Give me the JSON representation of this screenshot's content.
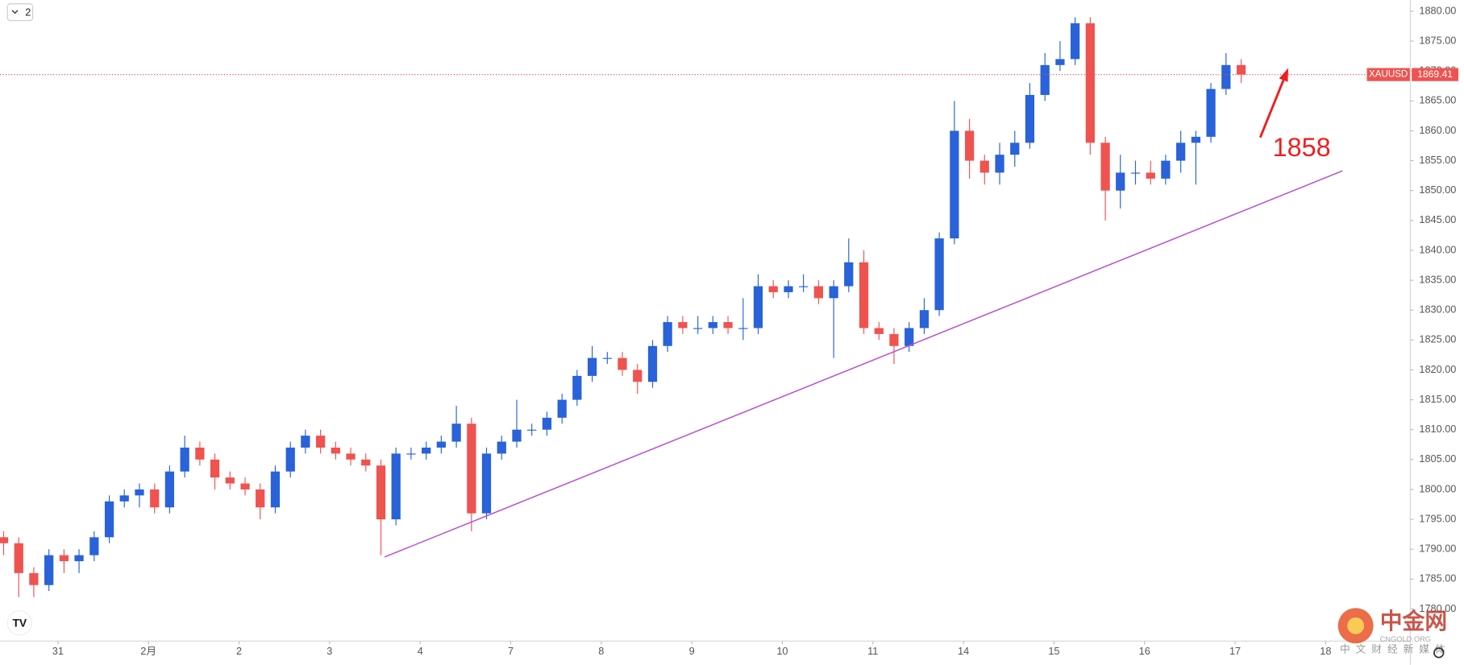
{
  "chart_data": {
    "type": "candlestick",
    "xlim": [
      -0.64,
      14.93
    ],
    "ylim": [
      1774.7,
      1881.87
    ],
    "xticks": [
      {
        "value": 0,
        "label": "31"
      },
      {
        "value": 1,
        "label": "2月"
      },
      {
        "value": 2,
        "label": "2"
      },
      {
        "value": 3,
        "label": "3"
      },
      {
        "value": 4,
        "label": "4"
      },
      {
        "value": 5,
        "label": "7"
      },
      {
        "value": 6,
        "label": "8"
      },
      {
        "value": 7,
        "label": "9"
      },
      {
        "value": 8,
        "label": "10"
      },
      {
        "value": 9,
        "label": "11"
      },
      {
        "value": 10,
        "label": "14"
      },
      {
        "value": 11,
        "label": "15"
      },
      {
        "value": 12,
        "label": "16"
      },
      {
        "value": 13,
        "label": "17"
      },
      {
        "value": 14,
        "label": "18"
      }
    ],
    "yticks": [
      {
        "value": 1880,
        "label": "1880.00"
      },
      {
        "value": 1875,
        "label": "1875.00"
      },
      {
        "value": 1870,
        "label": "1870.00"
      },
      {
        "value": 1865,
        "label": "1865.00"
      },
      {
        "value": 1860,
        "label": "1860.00"
      },
      {
        "value": 1855,
        "label": "1855.00"
      },
      {
        "value": 1850,
        "label": "1850.00"
      },
      {
        "value": 1845,
        "label": "1845.00"
      },
      {
        "value": 1840,
        "label": "1840.00"
      },
      {
        "value": 1835,
        "label": "1835.00"
      },
      {
        "value": 1830,
        "label": "1830.00"
      },
      {
        "value": 1825,
        "label": "1825.00"
      },
      {
        "value": 1820,
        "label": "1820.00"
      },
      {
        "value": 1815,
        "label": "1815.00"
      },
      {
        "value": 1810,
        "label": "1810.00"
      },
      {
        "value": 1805,
        "label": "1805.00"
      },
      {
        "value": 1800,
        "label": "1800.00"
      },
      {
        "value": 1795,
        "label": "1795.00"
      },
      {
        "value": 1790,
        "label": "1790.00"
      },
      {
        "value": 1785,
        "label": "1785.00"
      },
      {
        "value": 1780,
        "label": "1780.00"
      }
    ],
    "up_color": "#2962d9",
    "down_color": "#ef5350",
    "x": [
      -0.6,
      -0.433,
      -0.267,
      -0.1,
      0.067,
      0.233,
      0.4,
      0.567,
      0.733,
      0.9,
      1.067,
      1.233,
      1.4,
      1.567,
      1.733,
      1.9,
      2.067,
      2.233,
      2.4,
      2.567,
      2.733,
      2.9,
      3.067,
      3.233,
      3.4,
      3.567,
      3.733,
      3.9,
      4.067,
      4.233,
      4.4,
      4.567,
      4.733,
      4.9,
      5.067,
      5.233,
      5.4,
      5.567,
      5.733,
      5.9,
      6.067,
      6.233,
      6.4,
      6.567,
      6.733,
      6.9,
      7.067,
      7.233,
      7.4,
      7.567,
      7.733,
      7.9,
      8.067,
      8.233,
      8.4,
      8.567,
      8.733,
      8.9,
      9.067,
      9.233,
      9.4,
      9.567,
      9.733,
      9.9,
      10.067,
      10.233,
      10.4,
      10.567,
      10.733,
      10.9,
      11.067,
      11.233,
      11.4,
      11.567,
      11.733,
      11.9,
      12.067,
      12.233,
      12.4,
      12.567,
      12.733,
      12.9,
      13.067
    ],
    "open": [
      1792,
      1791,
      1786,
      1784,
      1789,
      1788,
      1789,
      1792,
      1798,
      1799,
      1800,
      1797,
      1803,
      1807,
      1805,
      1802,
      1801,
      1800,
      1797,
      1803,
      1807,
      1809,
      1807,
      1806,
      1805,
      1804,
      1795,
      1806,
      1806,
      1807,
      1808,
      1811,
      1796,
      1806,
      1808,
      1810,
      1810,
      1812,
      1815,
      1819,
      1822,
      1822,
      1820,
      1818,
      1824,
      1828,
      1827,
      1827,
      1828,
      1827,
      1827,
      1834,
      1833,
      1834,
      1834,
      1832,
      1834,
      1838,
      1827,
      1826,
      1824,
      1827,
      1830,
      1842,
      1860,
      1855,
      1853,
      1856,
      1858,
      1866,
      1871,
      1872,
      1878,
      1858,
      1850,
      1853,
      1853,
      1852,
      1855,
      1858,
      1859,
      1867,
      1871
    ],
    "high": [
      1793,
      1792,
      1787,
      1790,
      1790,
      1790,
      1793,
      1799,
      1800,
      1801,
      1801,
      1804,
      1809,
      1808,
      1806,
      1803,
      1802,
      1801,
      1804,
      1808,
      1810,
      1810,
      1808,
      1807,
      1806,
      1805,
      1807,
      1807,
      1808,
      1809,
      1814,
      1812,
      1807,
      1809,
      1815,
      1811,
      1813,
      1816,
      1820,
      1824,
      1823,
      1823,
      1821,
      1825,
      1829,
      1829,
      1829,
      1829,
      1829,
      1832,
      1836,
      1835,
      1835,
      1836,
      1835,
      1835,
      1842,
      1840,
      1828,
      1827,
      1828,
      1832,
      1843,
      1865,
      1862,
      1856,
      1858,
      1860,
      1868,
      1873,
      1875,
      1879,
      1879,
      1859,
      1856,
      1855,
      1855,
      1856,
      1860,
      1860,
      1868,
      1873,
      1872
    ],
    "low": [
      1789,
      1782,
      1782,
      1783,
      1786,
      1786,
      1788,
      1791,
      1797,
      1797,
      1796,
      1796,
      1802,
      1804,
      1800,
      1800,
      1799,
      1795,
      1796,
      1802,
      1806,
      1806,
      1805,
      1804,
      1803,
      1789,
      1794,
      1805,
      1805,
      1806,
      1807,
      1793,
      1795,
      1805,
      1807,
      1809,
      1809,
      1811,
      1814,
      1818,
      1821,
      1819,
      1816,
      1817,
      1823,
      1826,
      1826,
      1826,
      1826,
      1825,
      1826,
      1832,
      1832,
      1833,
      1831,
      1822,
      1833,
      1826,
      1825,
      1821,
      1823,
      1826,
      1829,
      1841,
      1852,
      1851,
      1851,
      1854,
      1857,
      1865,
      1870,
      1871,
      1856,
      1845,
      1847,
      1851,
      1851,
      1851,
      1853,
      1851,
      1858,
      1866,
      1868
    ],
    "close": [
      1791,
      1786,
      1784,
      1789,
      1788,
      1789,
      1792,
      1798,
      1799,
      1800,
      1797,
      1803,
      1807,
      1805,
      1802,
      1801,
      1800,
      1797,
      1803,
      1807,
      1809,
      1807,
      1806,
      1805,
      1804,
      1795,
      1806,
      1806,
      1807,
      1808,
      1811,
      1796,
      1806,
      1808,
      1810,
      1810,
      1812,
      1815,
      1819,
      1822,
      1822,
      1820,
      1818,
      1824,
      1828,
      1827,
      1827,
      1828,
      1827,
      1827,
      1834,
      1833,
      1834,
      1834,
      1832,
      1834,
      1838,
      1827,
      1826,
      1824,
      1827,
      1830,
      1842,
      1860,
      1855,
      1853,
      1856,
      1858,
      1866,
      1871,
      1872,
      1878,
      1858,
      1850,
      1853,
      1853,
      1852,
      1855,
      1858,
      1859,
      1867,
      1871,
      1869.41
    ],
    "price_line": {
      "symbol": "XAUUSD",
      "value": 1869.41,
      "color": "#ef5350"
    },
    "trend_line": {
      "x": [
        3.608,
        14.186
      ],
      "y": [
        1788.7,
        1853.3
      ],
      "color": "#b84fd0"
    },
    "arrow": {
      "x": [
        13.278,
        13.588
      ],
      "y": [
        1858.9,
        1870.5
      ],
      "color": "#f01e1e"
    },
    "annotation": "1858",
    "interval_badge": "2",
    "watermark": {
      "title": "中金网",
      "subtitle": "CNGOLD.ORG",
      "tagline": "中文财经新媒体"
    }
  }
}
